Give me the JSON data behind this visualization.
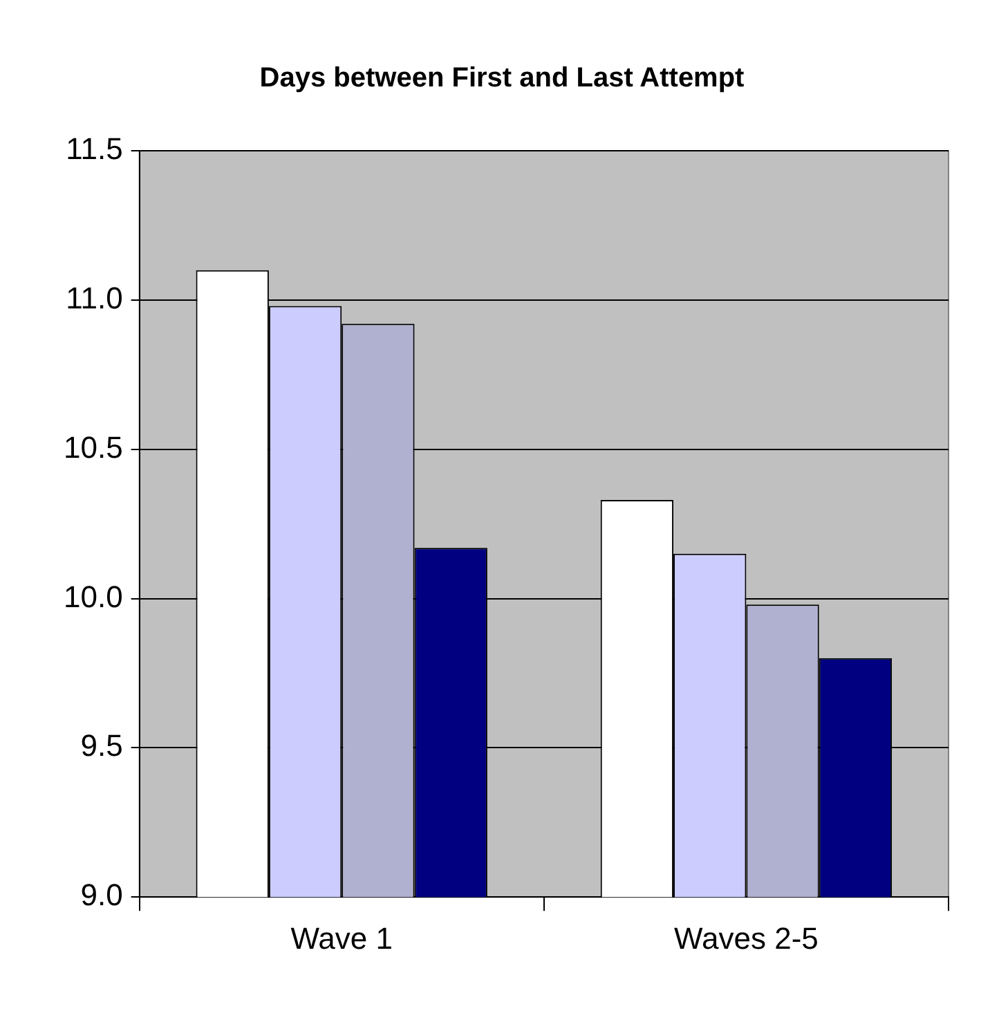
{
  "chart_data": {
    "type": "bar",
    "title": "Days between First and Last Attempt",
    "categories": [
      "Wave 1",
      "Waves 2-5"
    ],
    "series": [
      {
        "color": "#ffffff",
        "values": [
          11.1,
          10.33
        ]
      },
      {
        "color": "#ccccff",
        "values": [
          10.98,
          10.15
        ]
      },
      {
        "color": "#b0b0d0",
        "values": [
          10.92,
          9.98
        ]
      },
      {
        "color": "#000080",
        "values": [
          10.17,
          9.8
        ]
      }
    ],
    "ylim": [
      9,
      11.5
    ],
    "yticks": [
      {
        "value": 9,
        "label": "9.0"
      },
      {
        "value": 9.5,
        "label": "9.5"
      },
      {
        "value": 10,
        "label": "10.0"
      },
      {
        "value": 10.5,
        "label": "10.5"
      },
      {
        "value": 11,
        "label": "11.0"
      },
      {
        "value": 11.5,
        "label": "11.5"
      }
    ],
    "grid": "y",
    "legend": false
  }
}
